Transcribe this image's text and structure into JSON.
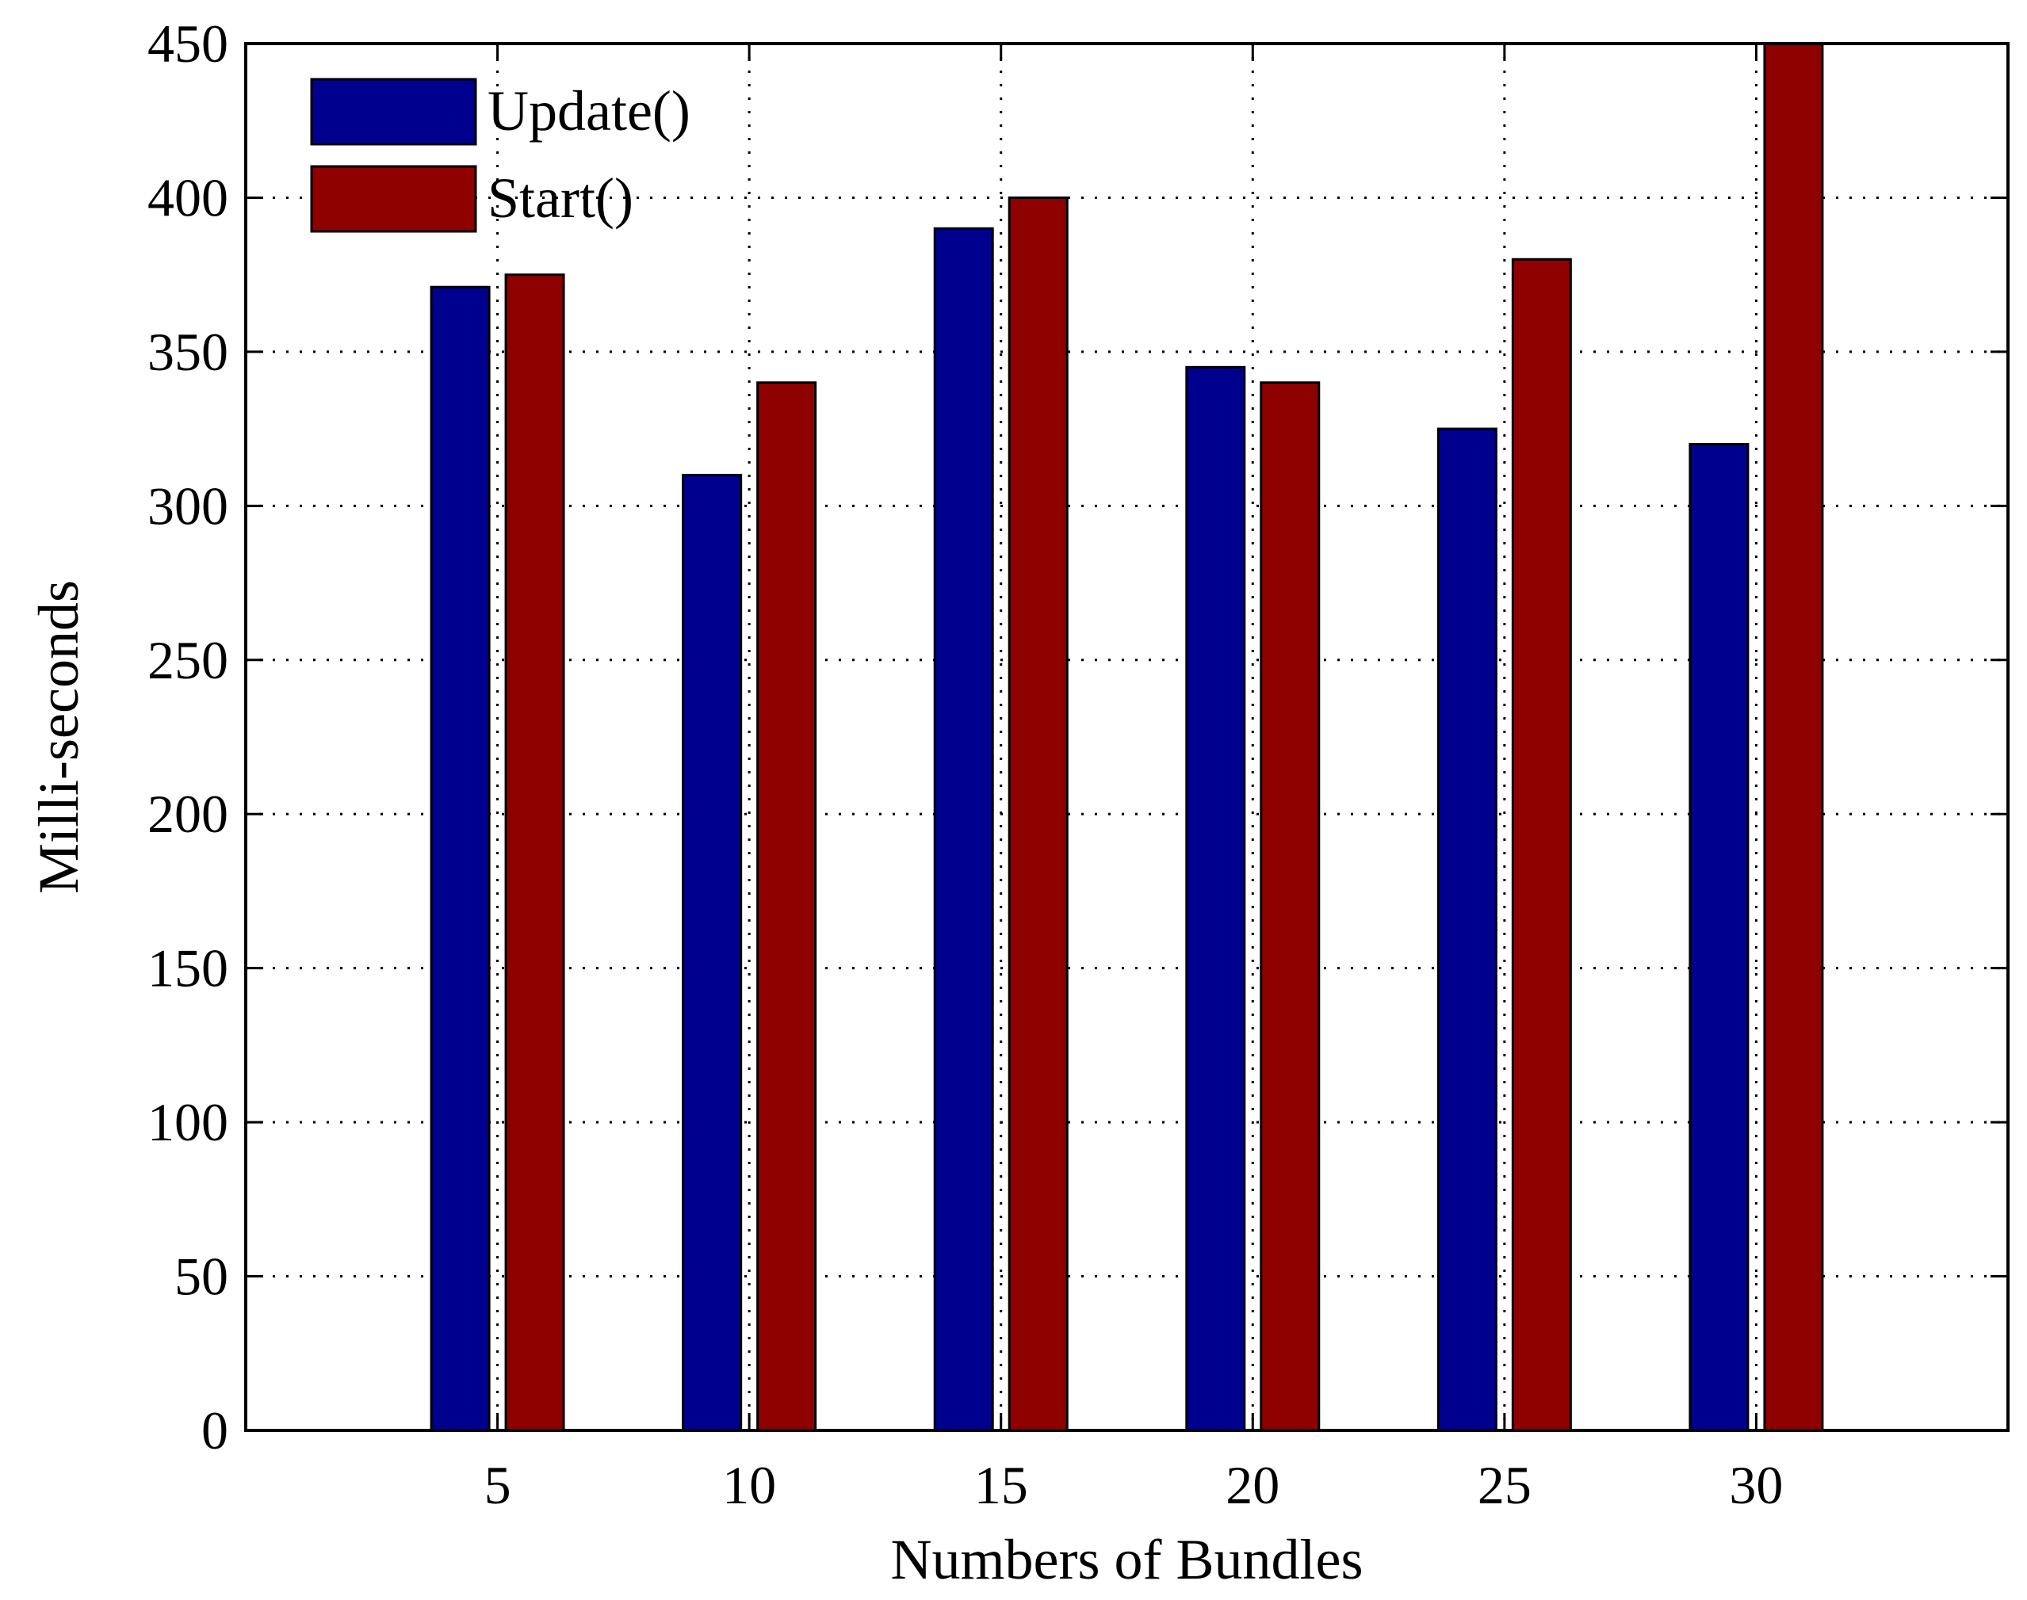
{
  "chart_data": {
    "type": "bar",
    "title": "",
    "xlabel": "Numbers of Bundles",
    "ylabel": "Milli-seconds",
    "categories": [
      "5",
      "10",
      "15",
      "20",
      "25",
      "30"
    ],
    "series": [
      {
        "name": "Update()",
        "color": "#00008F",
        "values": [
          371,
          310,
          390,
          345,
          325,
          320
        ]
      },
      {
        "name": "Start()",
        "color": "#8F0000",
        "values": [
          375,
          340,
          400,
          340,
          380,
          450
        ]
      }
    ],
    "xlim": [
      0,
      35
    ],
    "x_values": [
      5,
      10,
      15,
      20,
      25,
      30
    ],
    "ylim": [
      0,
      450
    ],
    "yticks": [
      "0",
      "50",
      "100",
      "150",
      "200",
      "250",
      "300",
      "350",
      "400",
      "450"
    ],
    "grid": true,
    "legend_position": "top-left"
  }
}
